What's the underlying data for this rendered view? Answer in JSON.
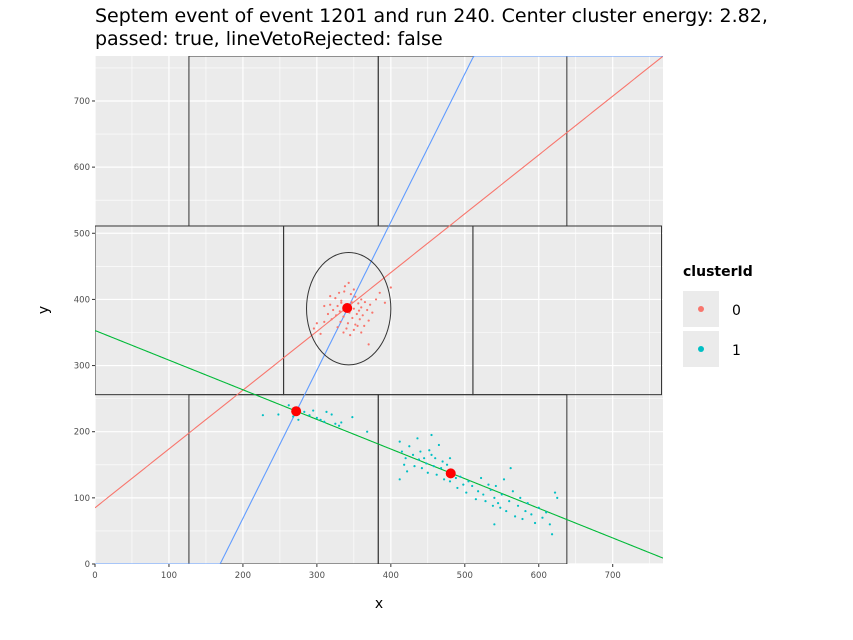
{
  "chart_data": {
    "type": "scatter",
    "title": [
      "Septem event of event 1201 and run 240. Center cluster energy: 2.82,",
      "passed: true, lineVetoRejected: false"
    ],
    "xlabel": "x",
    "ylabel": "y",
    "xlim": [
      0,
      768
    ],
    "ylim": [
      0,
      768
    ],
    "xticks": [
      0,
      100,
      200,
      300,
      400,
      500,
      600,
      700
    ],
    "yticks": [
      0,
      100,
      200,
      300,
      400,
      500,
      600,
      700
    ],
    "grid": true,
    "legend": {
      "title": "clusterId",
      "position": "right",
      "entries": [
        {
          "label": "0",
          "color": "#F8766D"
        },
        {
          "label": "1",
          "color": "#00BFC4"
        }
      ]
    },
    "chips": [
      [
        127,
        511,
        383,
        768
      ],
      [
        383,
        511,
        638,
        768
      ],
      [
        0,
        256,
        255,
        511
      ],
      [
        255,
        256,
        511,
        511
      ],
      [
        511,
        256,
        766,
        511
      ],
      [
        127,
        0,
        383,
        256
      ],
      [
        383,
        0,
        638,
        256
      ]
    ],
    "lines": [
      {
        "color": "#F8766D",
        "intercept": 85,
        "slope": 0.889
      },
      {
        "color": "#619CFF",
        "intercept": -379,
        "slope": 2.24
      },
      {
        "color": "#00BA38",
        "intercept": 353,
        "slope": -0.448
      }
    ],
    "ellipse": {
      "cx": 343,
      "cy": 386,
      "rx": 57,
      "ry": 85
    },
    "centers": [
      [
        341,
        387
      ],
      [
        272,
        231
      ],
      [
        481,
        137
      ]
    ],
    "series": [
      {
        "name": "0",
        "color": "#F8766D",
        "points": [
          [
            343,
            425
          ],
          [
            338,
            420
          ],
          [
            330,
            410
          ],
          [
            346,
            408
          ],
          [
            352,
            404
          ],
          [
            325,
            402
          ],
          [
            360,
            400
          ],
          [
            333,
            398
          ],
          [
            347,
            396
          ],
          [
            356,
            394
          ],
          [
            365,
            396
          ],
          [
            372,
            392
          ],
          [
            318,
            392
          ],
          [
            328,
            390
          ],
          [
            338,
            388
          ],
          [
            350,
            386
          ],
          [
            360,
            388
          ],
          [
            368,
            384
          ],
          [
            322,
            384
          ],
          [
            331,
            382
          ],
          [
            344,
            380
          ],
          [
            354,
            378
          ],
          [
            362,
            376
          ],
          [
            315,
            378
          ],
          [
            326,
            376
          ],
          [
            336,
            374
          ],
          [
            348,
            372
          ],
          [
            358,
            370
          ],
          [
            370,
            368
          ],
          [
            320,
            370
          ],
          [
            332,
            366
          ],
          [
            342,
            364
          ],
          [
            352,
            362
          ],
          [
            364,
            360
          ],
          [
            310,
            366
          ],
          [
            328,
            358
          ],
          [
            340,
            356
          ],
          [
            350,
            354
          ],
          [
            336,
            350
          ],
          [
            360,
            350
          ],
          [
            345,
            346
          ],
          [
            300,
            364
          ],
          [
            380,
            400
          ],
          [
            392,
            395
          ],
          [
            400,
            418
          ],
          [
            385,
            410
          ],
          [
            370,
            332
          ],
          [
            305,
            348
          ],
          [
            296,
            356
          ],
          [
            375,
            380
          ],
          [
            350,
            415
          ],
          [
            337,
            412
          ],
          [
            355,
            360
          ],
          [
            345,
            392
          ],
          [
            333,
            395
          ],
          [
            357,
            383
          ],
          [
            318,
            405
          ],
          [
            310,
            390
          ]
        ]
      },
      {
        "name": "1",
        "color": "#00BFC4",
        "points": [
          [
            227,
            225
          ],
          [
            248,
            226
          ],
          [
            262,
            240
          ],
          [
            268,
            223
          ],
          [
            275,
            218
          ],
          [
            283,
            230
          ],
          [
            290,
            225
          ],
          [
            295,
            232
          ],
          [
            300,
            221
          ],
          [
            305,
            218
          ],
          [
            310,
            215
          ],
          [
            313,
            230
          ],
          [
            320,
            226
          ],
          [
            325,
            212
          ],
          [
            330,
            209
          ],
          [
            333,
            214
          ],
          [
            348,
            222
          ],
          [
            368,
            200
          ],
          [
            412,
            185
          ],
          [
            415,
            170
          ],
          [
            420,
            160
          ],
          [
            418,
            150
          ],
          [
            422,
            140
          ],
          [
            425,
            178
          ],
          [
            430,
            165
          ],
          [
            432,
            148
          ],
          [
            436,
            190
          ],
          [
            438,
            158
          ],
          [
            440,
            170
          ],
          [
            442,
            145
          ],
          [
            445,
            160
          ],
          [
            448,
            152
          ],
          [
            450,
            138
          ],
          [
            452,
            172
          ],
          [
            455,
            165
          ],
          [
            458,
            148
          ],
          [
            460,
            160
          ],
          [
            462,
            135
          ],
          [
            465,
            180
          ],
          [
            468,
            145
          ],
          [
            470,
            155
          ],
          [
            472,
            128
          ],
          [
            476,
            150
          ],
          [
            480,
            125
          ],
          [
            484,
            140
          ],
          [
            488,
            130
          ],
          [
            490,
            115
          ],
          [
            494,
            132
          ],
          [
            498,
            120
          ],
          [
            502,
            108
          ],
          [
            505,
            125
          ],
          [
            510,
            118
          ],
          [
            515,
            98
          ],
          [
            518,
            110
          ],
          [
            522,
            130
          ],
          [
            525,
            105
          ],
          [
            528,
            95
          ],
          [
            532,
            120
          ],
          [
            535,
            112
          ],
          [
            538,
            88
          ],
          [
            540,
            100
          ],
          [
            542,
            118
          ],
          [
            545,
            92
          ],
          [
            548,
            85
          ],
          [
            550,
            105
          ],
          [
            553,
            128
          ],
          [
            556,
            80
          ],
          [
            560,
            95
          ],
          [
            562,
            145
          ],
          [
            565,
            110
          ],
          [
            568,
            72
          ],
          [
            572,
            88
          ],
          [
            575,
            100
          ],
          [
            578,
            68
          ],
          [
            582,
            80
          ],
          [
            585,
            92
          ],
          [
            590,
            75
          ],
          [
            595,
            62
          ],
          [
            600,
            85
          ],
          [
            605,
            70
          ],
          [
            610,
            78
          ],
          [
            615,
            60
          ],
          [
            618,
            45
          ],
          [
            622,
            108
          ],
          [
            625,
            100
          ],
          [
            412,
            128
          ],
          [
            540,
            60
          ],
          [
            480,
            160
          ],
          [
            455,
            195
          ]
        ]
      }
    ]
  }
}
